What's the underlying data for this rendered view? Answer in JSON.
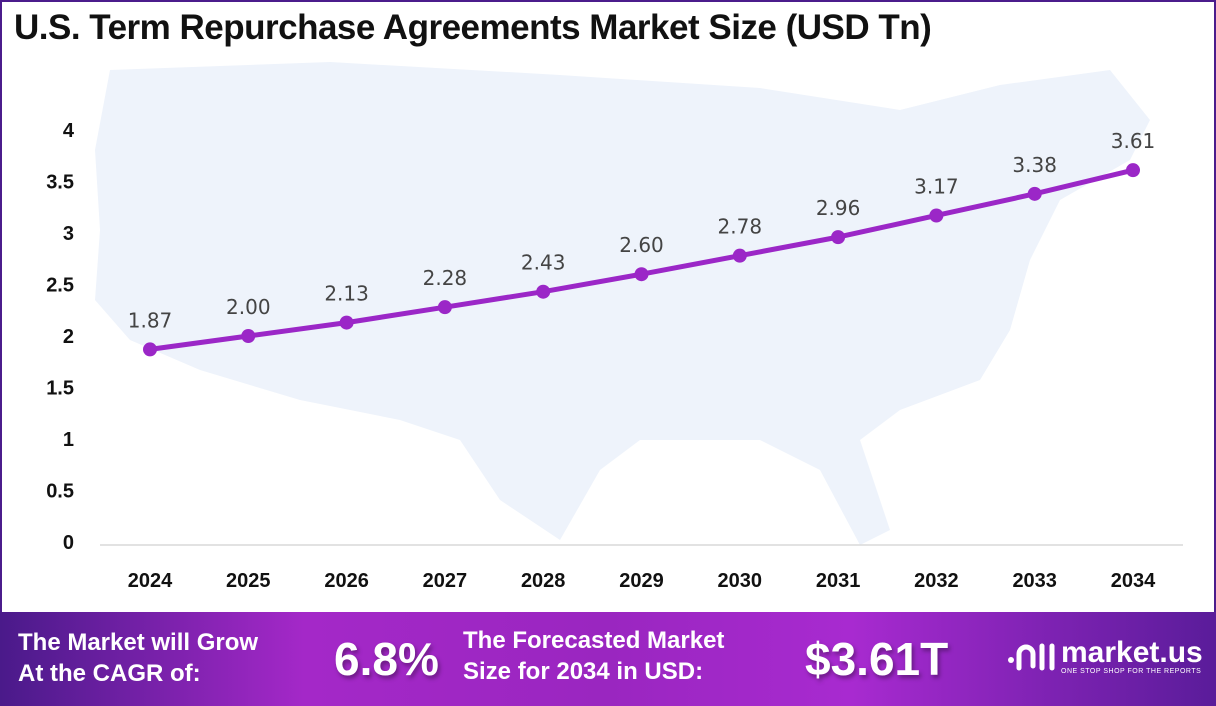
{
  "chart_data": {
    "type": "line",
    "title": "U.S. Term Repurchase Agreements Market Size (USD Tn)",
    "categories": [
      "2024",
      "2025",
      "2026",
      "2027",
      "2028",
      "2029",
      "2030",
      "2031",
      "2032",
      "2033",
      "2034"
    ],
    "values": [
      1.87,
      2.0,
      2.13,
      2.28,
      2.43,
      2.6,
      2.78,
      2.96,
      3.17,
      3.38,
      3.61
    ],
    "data_labels": [
      "1.87",
      "2.00",
      "2.13",
      "2.28",
      "2.43",
      "2.60",
      "2.78",
      "2.96",
      "3.17",
      "3.38",
      "3.61"
    ],
    "yticks": [
      "0",
      "0.5",
      "1",
      "1.5",
      "2",
      "2.5",
      "3",
      "3.5",
      "4"
    ],
    "ylim": [
      0,
      4
    ],
    "grid": false,
    "line_color": "#9b27c7"
  },
  "footer": {
    "cagr_label_1": "The Market will Grow",
    "cagr_label_2": "At the CAGR of:",
    "cagr_value": "6.8%",
    "forecast_label_1": "The Forecasted Market",
    "forecast_label_2": "Size for 2034 in USD:",
    "forecast_value": "$3.61T",
    "brand": "market.us",
    "tagline": "ONE STOP SHOP FOR THE REPORTS"
  }
}
